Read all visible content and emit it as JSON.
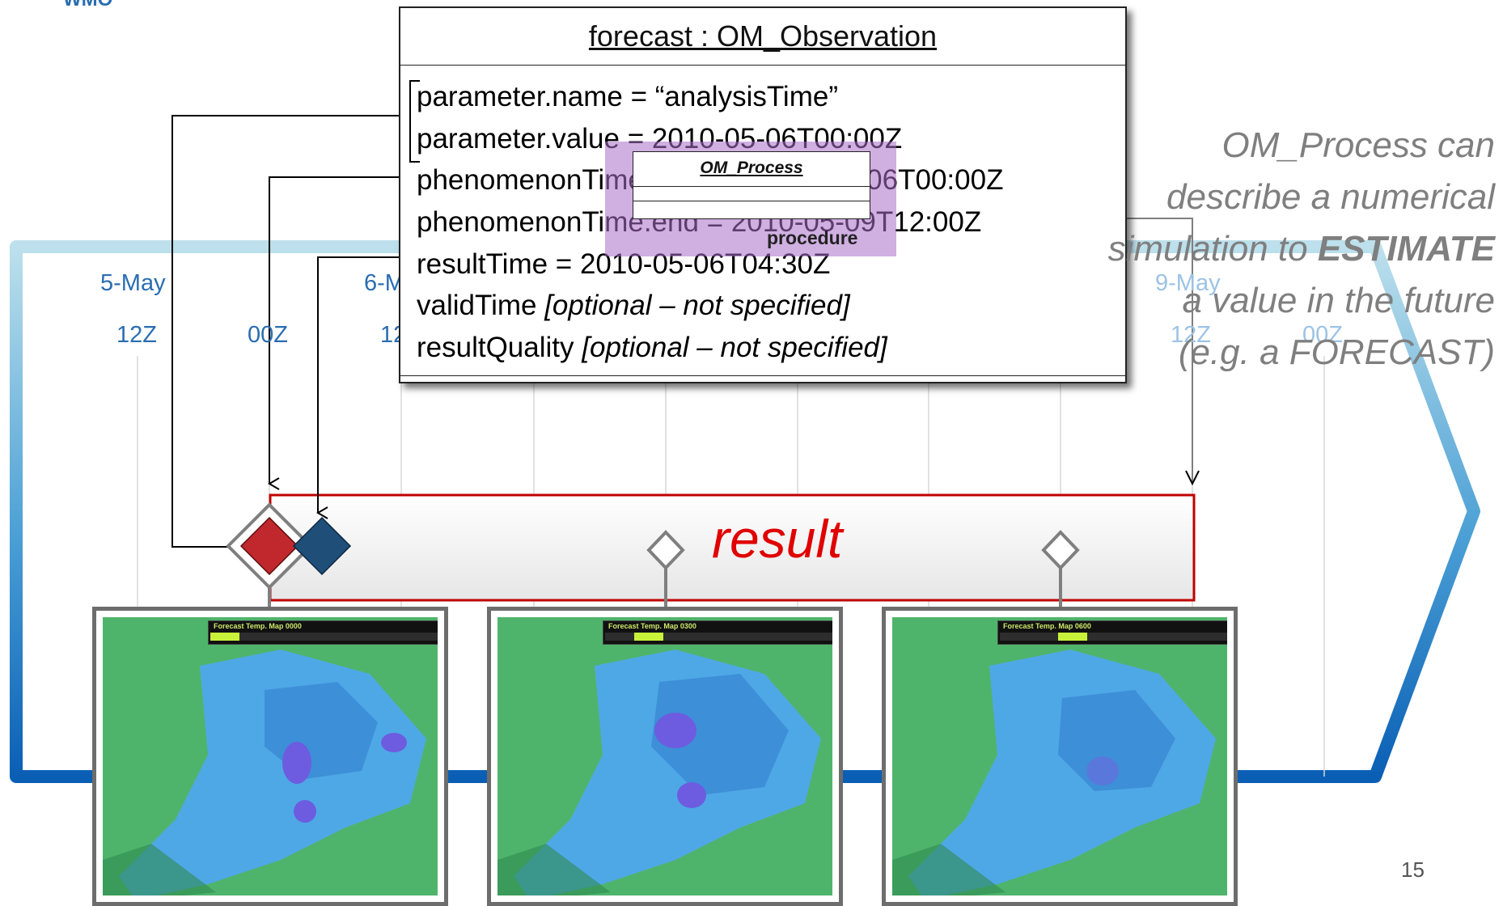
{
  "header": {
    "logo_text": "WMO"
  },
  "timeline": {
    "dates": [
      "5-May",
      "6-M",
      "9-May"
    ],
    "hours": [
      "12Z",
      "00Z",
      "12",
      "12Z",
      "00Z"
    ]
  },
  "observation": {
    "title": "forecast : OM_Observation",
    "attributes": [
      {
        "text": "parameter.name = “analysisTime”",
        "italic": ""
      },
      {
        "text": "parameter.value = 2010-05-06T00:00Z",
        "italic": ""
      },
      {
        "text": "phenomenonTime.begin = 2010-05-06T00:00Z",
        "italic": ""
      },
      {
        "text": "phenomenonTime.end = 2010-05-09T12:00Z",
        "italic": ""
      },
      {
        "text": "resultTime = 2010-05-06T04:30Z",
        "italic": ""
      },
      {
        "text": "validTime ",
        "italic": "[optional – not specified]"
      },
      {
        "text": "resultQuality ",
        "italic": "[optional – not specified]"
      }
    ]
  },
  "process": {
    "title": "OM_Process",
    "role_label": "procedure"
  },
  "callout": {
    "line1": "OM_Process can",
    "line2": "describe a numerical",
    "line3_prefix": "simulation to ",
    "line3_bold": "ESTIMATE",
    "line4": "a value in the future",
    "line5": "(e.g. a FORECAST)"
  },
  "result": {
    "label": "result"
  },
  "maps": [
    {
      "title": "Forecast Temp. Map  0000",
      "slider_pos": 0.0
    },
    {
      "title": "Forecast Temp. Map  0300",
      "slider_pos": 0.125
    },
    {
      "title": "Forecast Temp. Map  0600",
      "slider_pos": 0.25
    }
  ],
  "page_number": "15",
  "colors": {
    "accent_blue": "#2a6db1",
    "result_red": "#e00000",
    "procedure_purple": "#aa6ec8",
    "diamond_red": "#c0282d",
    "diamond_blue": "#1f4e79"
  }
}
